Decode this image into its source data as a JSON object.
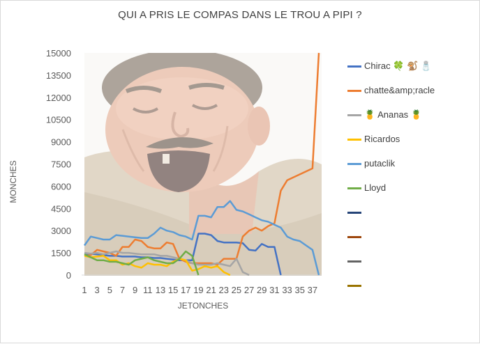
{
  "chart_data": {
    "type": "line",
    "title": "QUI A PRIS LE COMPAS DANS LE TROU A PIPI ?",
    "xlabel": "JETONCHES",
    "ylabel": "MONCHES",
    "ylim": [
      0,
      15000
    ],
    "yticks": [
      0,
      1500,
      3000,
      4500,
      6000,
      7500,
      9000,
      10500,
      12000,
      13500,
      15000
    ],
    "ytick_labels": [
      "0",
      "1500",
      "3000",
      "4500",
      "6000",
      "7500",
      "9000",
      "10500",
      "12000",
      "13500",
      "15000"
    ],
    "xlim": [
      1,
      38
    ],
    "xticks": [
      1,
      3,
      5,
      7,
      9,
      11,
      13,
      15,
      17,
      19,
      21,
      23,
      25,
      27,
      29,
      31,
      33,
      35,
      37
    ],
    "xtick_labels": [
      "1",
      "3",
      "5",
      "7",
      "9",
      "11",
      "13",
      "15",
      "17",
      "19",
      "21",
      "23",
      "25",
      "27",
      "29",
      "31",
      "33",
      "35",
      "37"
    ],
    "legend_position": "right",
    "grid": false,
    "series": [
      {
        "name": "Chirac 🍀 🐒 🧂",
        "color": "#4472c4",
        "x": [
          1,
          2,
          3,
          4,
          5,
          6,
          7,
          8,
          9,
          10,
          11,
          12,
          13,
          14,
          15,
          16,
          17,
          18,
          19,
          20,
          21,
          22,
          23,
          24,
          25,
          26,
          27,
          28,
          29,
          30,
          31,
          32
        ],
        "values": [
          1400,
          1450,
          1400,
          1350,
          1300,
          1300,
          1250,
          1250,
          1250,
          1200,
          1200,
          1150,
          1150,
          1100,
          1050,
          1000,
          1000,
          1000,
          2800,
          2800,
          2700,
          2300,
          2200,
          2200,
          2200,
          2150,
          1700,
          1650,
          2100,
          1900,
          1900,
          0
        ]
      },
      {
        "name": "chatte&amp;racle",
        "color": "#ed7d31",
        "x": [
          1,
          2,
          3,
          4,
          5,
          6,
          7,
          8,
          9,
          10,
          11,
          12,
          13,
          14,
          15,
          16,
          17,
          18,
          19,
          20,
          21,
          22,
          23,
          24,
          25,
          26,
          27,
          28,
          29,
          30,
          31,
          32,
          33,
          34,
          35,
          36,
          37,
          38
        ],
        "values": [
          1300,
          1350,
          1700,
          1600,
          1500,
          1300,
          1900,
          1900,
          2400,
          2300,
          1900,
          1800,
          1800,
          2200,
          2100,
          1100,
          900,
          800,
          800,
          800,
          800,
          700,
          1100,
          1100,
          1100,
          2600,
          3000,
          3200,
          3000,
          3300,
          3500,
          5700,
          6400,
          6600,
          6800,
          7000,
          7200,
          15000
        ]
      },
      {
        "name": "🍍 Ananas 🍍",
        "color": "#a5a5a5",
        "x": [
          1,
          2,
          3,
          4,
          5,
          6,
          7,
          8,
          9,
          10,
          11,
          12,
          13,
          14,
          15,
          16,
          17,
          18,
          19,
          20,
          21,
          22,
          23,
          24,
          25,
          26,
          27
        ],
        "values": [
          1500,
          1450,
          1500,
          1400,
          1500,
          1600,
          1500,
          1500,
          1450,
          1400,
          1400,
          1400,
          1300,
          1300,
          1200,
          1100,
          1000,
          800,
          700,
          700,
          700,
          800,
          700,
          600,
          1100,
          200,
          0
        ]
      },
      {
        "name": "Ricardos",
        "color": "#ffc000",
        "x": [
          1,
          2,
          3,
          4,
          5,
          6,
          7,
          8,
          9,
          10,
          11,
          12,
          13,
          14,
          15,
          16,
          17,
          18,
          19,
          20,
          21,
          22,
          23,
          24
        ],
        "values": [
          1300,
          1200,
          1250,
          1300,
          1000,
          1000,
          700,
          800,
          600,
          500,
          800,
          700,
          700,
          600,
          900,
          1100,
          1000,
          300,
          400,
          600,
          500,
          600,
          200,
          0
        ]
      },
      {
        "name": "putaclik",
        "color": "#5b9bd5",
        "x": [
          1,
          2,
          3,
          4,
          5,
          6,
          7,
          8,
          9,
          10,
          11,
          12,
          13,
          14,
          15,
          16,
          17,
          18,
          19,
          20,
          21,
          22,
          23,
          24,
          25,
          26,
          27,
          28,
          29,
          30,
          31,
          32,
          33,
          34,
          35,
          36,
          37,
          38
        ],
        "values": [
          2000,
          2600,
          2500,
          2400,
          2400,
          2700,
          2650,
          2600,
          2550,
          2500,
          2500,
          2800,
          3200,
          3000,
          2900,
          2700,
          2600,
          2400,
          4000,
          4000,
          3900,
          4600,
          4600,
          5000,
          4400,
          4300,
          4100,
          3900,
          3700,
          3600,
          3400,
          3200,
          2600,
          2400,
          2300,
          2000,
          1700,
          0
        ]
      },
      {
        "name": "Lloyd",
        "color": "#70ad47",
        "x": [
          1,
          2,
          3,
          4,
          5,
          6,
          7,
          8,
          9,
          10,
          11,
          12,
          13,
          14,
          15,
          16,
          17,
          18,
          19
        ],
        "values": [
          1400,
          1200,
          1000,
          1000,
          900,
          900,
          800,
          700,
          1000,
          1100,
          1200,
          1000,
          900,
          800,
          800,
          1100,
          1600,
          1300,
          0
        ]
      },
      {
        "name": "",
        "color": "#264478",
        "x": [],
        "values": []
      },
      {
        "name": "",
        "color": "#9e480e",
        "x": [],
        "values": []
      },
      {
        "name": "",
        "color": "#636363",
        "x": [],
        "values": []
      },
      {
        "name": "",
        "color": "#997300",
        "x": [],
        "values": []
      }
    ]
  }
}
